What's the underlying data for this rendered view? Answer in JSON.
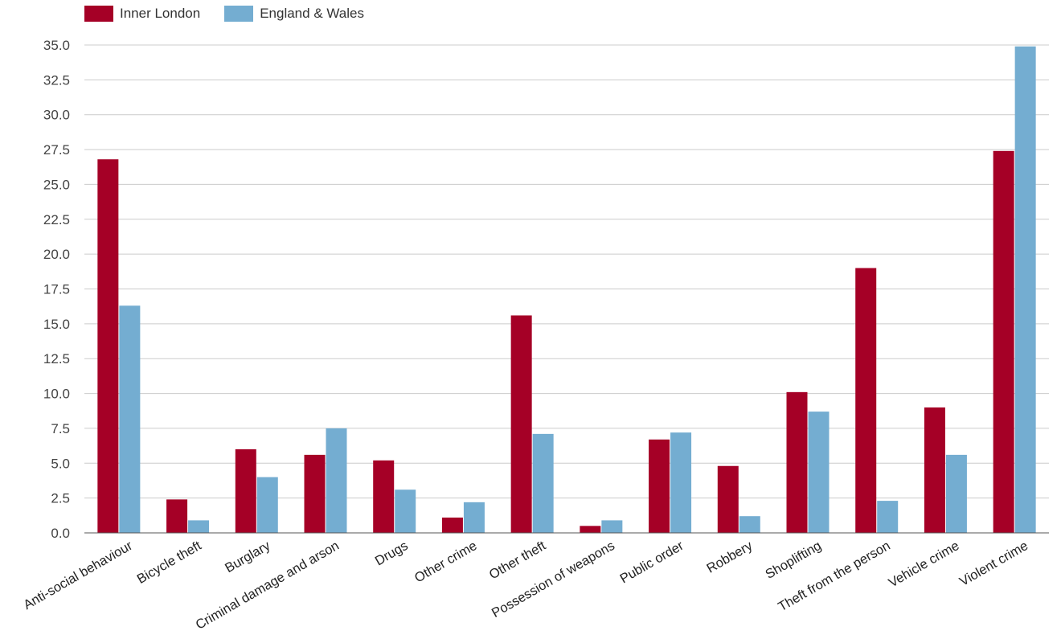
{
  "legend": [
    {
      "label": "Inner London",
      "color": "#a50026"
    },
    {
      "label": "England & Wales",
      "color": "#74add1"
    }
  ],
  "chart_data": {
    "type": "bar",
    "categories": [
      "Anti-social behaviour",
      "Bicycle theft",
      "Burglary",
      "Criminal damage and arson",
      "Drugs",
      "Other crime",
      "Other theft",
      "Possession of weapons",
      "Public order",
      "Robbery",
      "Shoplifting",
      "Theft from the person",
      "Vehicle crime",
      "Violent crime"
    ],
    "series": [
      {
        "name": "Inner London",
        "color": "#a50026",
        "values": [
          26.8,
          2.4,
          6.0,
          5.6,
          5.2,
          1.1,
          15.6,
          0.5,
          6.7,
          4.8,
          10.1,
          19.0,
          9.0,
          27.4
        ]
      },
      {
        "name": "England & Wales",
        "color": "#74add1",
        "values": [
          16.3,
          0.9,
          4.0,
          7.5,
          3.1,
          2.2,
          7.1,
          0.9,
          7.2,
          1.2,
          8.7,
          2.3,
          5.6,
          34.9
        ]
      }
    ],
    "ylim": [
      0,
      35
    ],
    "yticks": [
      "0.0",
      "2.5",
      "5.0",
      "7.5",
      "10.0",
      "12.5",
      "15.0",
      "17.5",
      "20.0",
      "22.5",
      "25.0",
      "27.5",
      "30.0",
      "32.5",
      "35.0"
    ],
    "grid": true,
    "legend_position": "top-left"
  }
}
